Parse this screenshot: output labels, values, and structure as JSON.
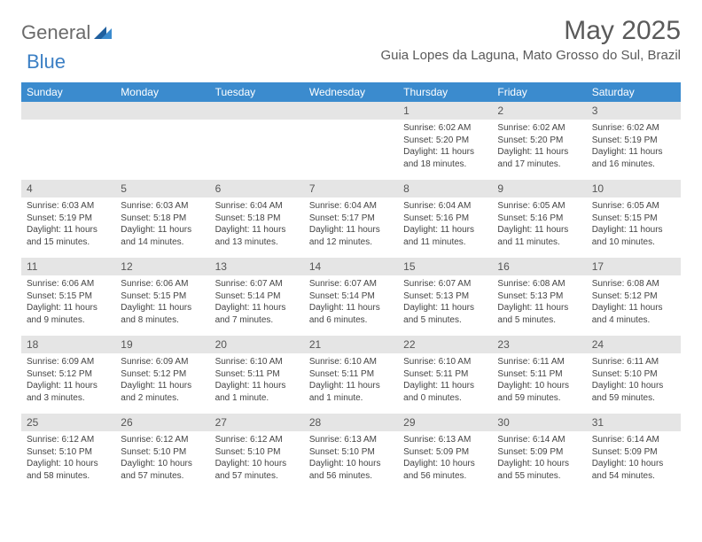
{
  "brand": {
    "part1": "General",
    "part2": "Blue"
  },
  "title": "May 2025",
  "location": "Guia Lopes da Laguna, Mato Grosso do Sul, Brazil",
  "colors": {
    "header_bar": "#3b8bce",
    "day_number_bg": "#e5e5e5",
    "text": "#333333",
    "title_text": "#5a5a5a",
    "logo_gray": "#6b6b6b",
    "logo_blue": "#3b7fc4"
  },
  "weekdays": [
    "Sunday",
    "Monday",
    "Tuesday",
    "Wednesday",
    "Thursday",
    "Friday",
    "Saturday"
  ],
  "weeks": [
    [
      null,
      null,
      null,
      null,
      {
        "n": "1",
        "sunrise": "Sunrise: 6:02 AM",
        "sunset": "Sunset: 5:20 PM",
        "daylight": "Daylight: 11 hours and 18 minutes."
      },
      {
        "n": "2",
        "sunrise": "Sunrise: 6:02 AM",
        "sunset": "Sunset: 5:20 PM",
        "daylight": "Daylight: 11 hours and 17 minutes."
      },
      {
        "n": "3",
        "sunrise": "Sunrise: 6:02 AM",
        "sunset": "Sunset: 5:19 PM",
        "daylight": "Daylight: 11 hours and 16 minutes."
      }
    ],
    [
      {
        "n": "4",
        "sunrise": "Sunrise: 6:03 AM",
        "sunset": "Sunset: 5:19 PM",
        "daylight": "Daylight: 11 hours and 15 minutes."
      },
      {
        "n": "5",
        "sunrise": "Sunrise: 6:03 AM",
        "sunset": "Sunset: 5:18 PM",
        "daylight": "Daylight: 11 hours and 14 minutes."
      },
      {
        "n": "6",
        "sunrise": "Sunrise: 6:04 AM",
        "sunset": "Sunset: 5:18 PM",
        "daylight": "Daylight: 11 hours and 13 minutes."
      },
      {
        "n": "7",
        "sunrise": "Sunrise: 6:04 AM",
        "sunset": "Sunset: 5:17 PM",
        "daylight": "Daylight: 11 hours and 12 minutes."
      },
      {
        "n": "8",
        "sunrise": "Sunrise: 6:04 AM",
        "sunset": "Sunset: 5:16 PM",
        "daylight": "Daylight: 11 hours and 11 minutes."
      },
      {
        "n": "9",
        "sunrise": "Sunrise: 6:05 AM",
        "sunset": "Sunset: 5:16 PM",
        "daylight": "Daylight: 11 hours and 11 minutes."
      },
      {
        "n": "10",
        "sunrise": "Sunrise: 6:05 AM",
        "sunset": "Sunset: 5:15 PM",
        "daylight": "Daylight: 11 hours and 10 minutes."
      }
    ],
    [
      {
        "n": "11",
        "sunrise": "Sunrise: 6:06 AM",
        "sunset": "Sunset: 5:15 PM",
        "daylight": "Daylight: 11 hours and 9 minutes."
      },
      {
        "n": "12",
        "sunrise": "Sunrise: 6:06 AM",
        "sunset": "Sunset: 5:15 PM",
        "daylight": "Daylight: 11 hours and 8 minutes."
      },
      {
        "n": "13",
        "sunrise": "Sunrise: 6:07 AM",
        "sunset": "Sunset: 5:14 PM",
        "daylight": "Daylight: 11 hours and 7 minutes."
      },
      {
        "n": "14",
        "sunrise": "Sunrise: 6:07 AM",
        "sunset": "Sunset: 5:14 PM",
        "daylight": "Daylight: 11 hours and 6 minutes."
      },
      {
        "n": "15",
        "sunrise": "Sunrise: 6:07 AM",
        "sunset": "Sunset: 5:13 PM",
        "daylight": "Daylight: 11 hours and 5 minutes."
      },
      {
        "n": "16",
        "sunrise": "Sunrise: 6:08 AM",
        "sunset": "Sunset: 5:13 PM",
        "daylight": "Daylight: 11 hours and 5 minutes."
      },
      {
        "n": "17",
        "sunrise": "Sunrise: 6:08 AM",
        "sunset": "Sunset: 5:12 PM",
        "daylight": "Daylight: 11 hours and 4 minutes."
      }
    ],
    [
      {
        "n": "18",
        "sunrise": "Sunrise: 6:09 AM",
        "sunset": "Sunset: 5:12 PM",
        "daylight": "Daylight: 11 hours and 3 minutes."
      },
      {
        "n": "19",
        "sunrise": "Sunrise: 6:09 AM",
        "sunset": "Sunset: 5:12 PM",
        "daylight": "Daylight: 11 hours and 2 minutes."
      },
      {
        "n": "20",
        "sunrise": "Sunrise: 6:10 AM",
        "sunset": "Sunset: 5:11 PM",
        "daylight": "Daylight: 11 hours and 1 minute."
      },
      {
        "n": "21",
        "sunrise": "Sunrise: 6:10 AM",
        "sunset": "Sunset: 5:11 PM",
        "daylight": "Daylight: 11 hours and 1 minute."
      },
      {
        "n": "22",
        "sunrise": "Sunrise: 6:10 AM",
        "sunset": "Sunset: 5:11 PM",
        "daylight": "Daylight: 11 hours and 0 minutes."
      },
      {
        "n": "23",
        "sunrise": "Sunrise: 6:11 AM",
        "sunset": "Sunset: 5:11 PM",
        "daylight": "Daylight: 10 hours and 59 minutes."
      },
      {
        "n": "24",
        "sunrise": "Sunrise: 6:11 AM",
        "sunset": "Sunset: 5:10 PM",
        "daylight": "Daylight: 10 hours and 59 minutes."
      }
    ],
    [
      {
        "n": "25",
        "sunrise": "Sunrise: 6:12 AM",
        "sunset": "Sunset: 5:10 PM",
        "daylight": "Daylight: 10 hours and 58 minutes."
      },
      {
        "n": "26",
        "sunrise": "Sunrise: 6:12 AM",
        "sunset": "Sunset: 5:10 PM",
        "daylight": "Daylight: 10 hours and 57 minutes."
      },
      {
        "n": "27",
        "sunrise": "Sunrise: 6:12 AM",
        "sunset": "Sunset: 5:10 PM",
        "daylight": "Daylight: 10 hours and 57 minutes."
      },
      {
        "n": "28",
        "sunrise": "Sunrise: 6:13 AM",
        "sunset": "Sunset: 5:10 PM",
        "daylight": "Daylight: 10 hours and 56 minutes."
      },
      {
        "n": "29",
        "sunrise": "Sunrise: 6:13 AM",
        "sunset": "Sunset: 5:09 PM",
        "daylight": "Daylight: 10 hours and 56 minutes."
      },
      {
        "n": "30",
        "sunrise": "Sunrise: 6:14 AM",
        "sunset": "Sunset: 5:09 PM",
        "daylight": "Daylight: 10 hours and 55 minutes."
      },
      {
        "n": "31",
        "sunrise": "Sunrise: 6:14 AM",
        "sunset": "Sunset: 5:09 PM",
        "daylight": "Daylight: 10 hours and 54 minutes."
      }
    ]
  ]
}
